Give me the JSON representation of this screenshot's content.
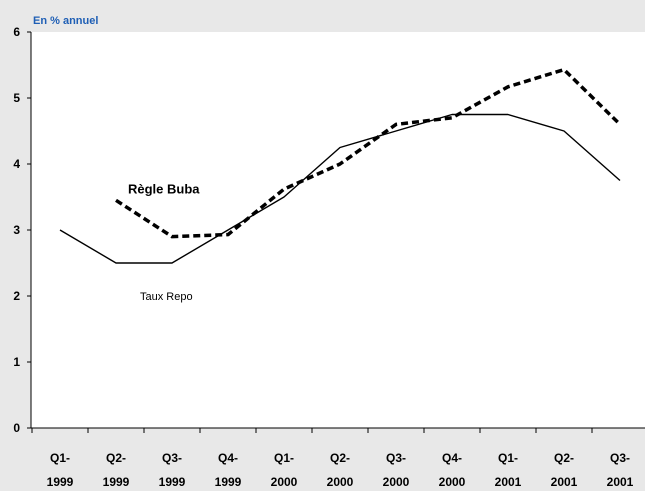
{
  "chart_data": {
    "type": "line",
    "unit_label": "En  %  annuel",
    "categories": [
      [
        "Q1-",
        "1999"
      ],
      [
        "Q2-",
        "1999"
      ],
      [
        "Q3-",
        "1999"
      ],
      [
        "Q4-",
        "1999"
      ],
      [
        "Q1-",
        "2000"
      ],
      [
        "Q2-",
        "2000"
      ],
      [
        "Q3-",
        "2000"
      ],
      [
        "Q4-",
        "2000"
      ],
      [
        "Q1-",
        "2001"
      ],
      [
        "Q2-",
        "2001"
      ],
      [
        "Q3-",
        "2001"
      ]
    ],
    "ylim": [
      0,
      6
    ],
    "yticks": [
      0,
      1,
      2,
      3,
      4,
      5,
      6
    ],
    "grid": false,
    "series": [
      {
        "name": "Taux Repo",
        "style": "solid",
        "color": "#000000",
        "points": [
          [
            0,
            3.0
          ],
          [
            1,
            2.5
          ],
          [
            2,
            2.5
          ],
          [
            3,
            3.0
          ],
          [
            4,
            3.5
          ],
          [
            5,
            4.25
          ],
          [
            6,
            4.5
          ],
          [
            7,
            4.75
          ],
          [
            8,
            4.75
          ],
          [
            9,
            4.5
          ],
          [
            10,
            3.75
          ]
        ]
      },
      {
        "name": "Règle Buba",
        "style": "dashed",
        "color": "#000000",
        "points": [
          [
            1,
            3.45
          ],
          [
            2,
            2.9
          ],
          [
            3,
            2.93
          ],
          [
            4,
            3.62
          ],
          [
            5,
            4.0
          ],
          [
            6,
            4.6
          ],
          [
            7,
            4.7
          ],
          [
            8,
            5.17
          ],
          [
            9,
            5.43
          ],
          [
            10,
            4.6
          ]
        ]
      }
    ]
  }
}
